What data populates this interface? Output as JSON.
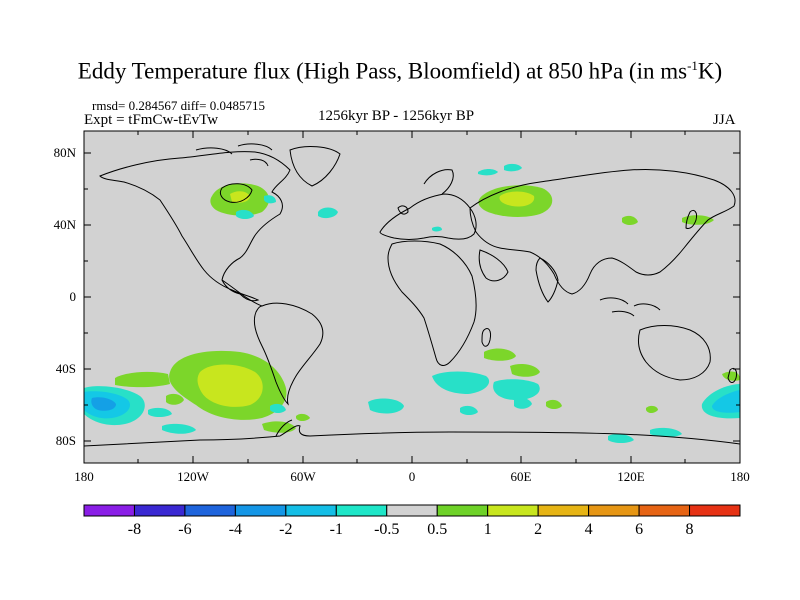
{
  "title": {
    "main": "Eddy Temperature flux (High Pass, Bloomfield) at 850 hPa (in ms",
    "sup": "-1",
    "end": "K)"
  },
  "stats": "rmsd= 0.284567 diff= 0.0485715",
  "experiment": "Expt = tFmCw-tEvTw",
  "period": "1256kyr BP - 1256kyr BP",
  "season": "JJA",
  "lat_ticks": [
    "80N",
    "40N",
    "0",
    "40S",
    "80S"
  ],
  "lon_ticks": [
    "180",
    "120W",
    "60W",
    "0",
    "60E",
    "120E",
    "180"
  ],
  "colorbar": {
    "labels": [
      "-8",
      "-6",
      "-4",
      "-2",
      "-1",
      "-0.5",
      "0.5",
      "1",
      "2",
      "4",
      "6",
      "8"
    ],
    "colors": [
      "#8a1ee6",
      "#3a28d2",
      "#1e64dc",
      "#1496e6",
      "#14bee6",
      "#1ee6c8",
      "#d2d2d2",
      "#6ed228",
      "#c8e61e",
      "#e6b414",
      "#e69614",
      "#e66414",
      "#e63214"
    ]
  },
  "colors": {
    "land_gray": "#d2d2d2",
    "green": "#7cd62a",
    "yellow": "#c8e61e",
    "cyan_light": "#28e0c8",
    "cyan_mid": "#14c8e6",
    "blue_light": "#14a0e6"
  }
}
